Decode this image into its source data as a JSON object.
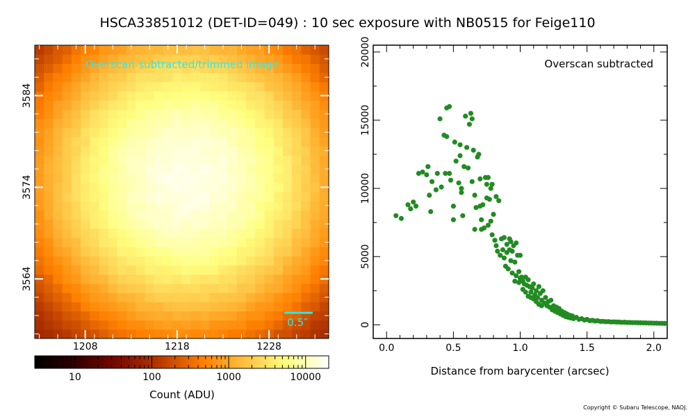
{
  "title": "HSCA33851012 (DET-ID=049) :  10 sec exposure with NB0515 for Feige110",
  "copyright": "Copyright © Subaru Telescope, NAOJ.",
  "colors": {
    "annotation": "#33e6e6",
    "scatter": "#228b22",
    "colormap": [
      "#000000",
      "#330000",
      "#7a0a00",
      "#b83a00",
      "#ff8000",
      "#ffc040",
      "#ffff80",
      "#ffffff"
    ]
  },
  "chart_data": [
    {
      "type": "heatmap",
      "annotation": "Overscan-subtracted/trimmed image",
      "scalebar_label": "0.5″",
      "xticks": [
        1208,
        1218,
        1228
      ],
      "yticks": [
        3584,
        3574,
        3564
      ],
      "xlim": [
        1202.5,
        1234.5
      ],
      "ylim": [
        3557.5,
        3589.5
      ],
      "center": [
        1219,
        3575
      ],
      "peak_adu": 16000,
      "background_adu": 60,
      "colorbar": {
        "label": "Count (ADU)",
        "scale": "log",
        "range": [
          3,
          20000
        ],
        "ticks": [
          "10",
          "100",
          "1000",
          "10000"
        ]
      }
    },
    {
      "type": "scatter",
      "annotation": "Overscan subtracted",
      "xlabel": "Distance from barycenter (arcsec)",
      "ylabel": "",
      "xlim": [
        -0.1,
        2.1
      ],
      "ylim": [
        -1000,
        20500
      ],
      "xticks": [
        "0.0",
        "0.5",
        "1.0",
        "1.5",
        "2.0"
      ],
      "yticks": [
        "0",
        "5000",
        "10000",
        "15000",
        "20000"
      ],
      "points": [
        [
          0.07,
          8000
        ],
        [
          0.11,
          7800
        ],
        [
          0.16,
          8800
        ],
        [
          0.18,
          8500
        ],
        [
          0.2,
          9000
        ],
        [
          0.22,
          8700
        ],
        [
          0.24,
          11100
        ],
        [
          0.27,
          11200
        ],
        [
          0.3,
          11000
        ],
        [
          0.31,
          11600
        ],
        [
          0.32,
          9500
        ],
        [
          0.33,
          8300
        ],
        [
          0.34,
          10500
        ],
        [
          0.37,
          9900
        ],
        [
          0.38,
          11100
        ],
        [
          0.4,
          15100
        ],
        [
          0.41,
          10100
        ],
        [
          0.43,
          13900
        ],
        [
          0.44,
          11100
        ],
        [
          0.45,
          13800
        ],
        [
          0.45,
          15900
        ],
        [
          0.47,
          16000
        ],
        [
          0.47,
          11100
        ],
        [
          0.48,
          10600
        ],
        [
          0.5,
          8700
        ],
        [
          0.5,
          7700
        ],
        [
          0.51,
          13400
        ],
        [
          0.52,
          12000
        ],
        [
          0.54,
          10400
        ],
        [
          0.55,
          12400
        ],
        [
          0.55,
          13200
        ],
        [
          0.56,
          9700
        ],
        [
          0.56,
          10000
        ],
        [
          0.57,
          8000
        ],
        [
          0.58,
          11600
        ],
        [
          0.59,
          15300
        ],
        [
          0.6,
          13000
        ],
        [
          0.61,
          11500
        ],
        [
          0.62,
          14700
        ],
        [
          0.63,
          15500
        ],
        [
          0.64,
          15100
        ],
        [
          0.64,
          10500
        ],
        [
          0.65,
          12800
        ],
        [
          0.66,
          9500
        ],
        [
          0.66,
          7000
        ],
        [
          0.67,
          8600
        ],
        [
          0.68,
          12300
        ],
        [
          0.69,
          12500
        ],
        [
          0.7,
          10700
        ],
        [
          0.7,
          8700
        ],
        [
          0.71,
          7700
        ],
        [
          0.71,
          7000
        ],
        [
          0.72,
          8800
        ],
        [
          0.73,
          7100
        ],
        [
          0.74,
          10800
        ],
        [
          0.75,
          10300
        ],
        [
          0.75,
          9300
        ],
        [
          0.76,
          10800
        ],
        [
          0.76,
          7300
        ],
        [
          0.77,
          9200
        ],
        [
          0.78,
          10000
        ],
        [
          0.78,
          7600
        ],
        [
          0.79,
          10300
        ],
        [
          0.79,
          6600
        ],
        [
          0.8,
          8100
        ],
        [
          0.81,
          6200
        ],
        [
          0.82,
          5800
        ],
        [
          0.82,
          9400
        ],
        [
          0.83,
          5400
        ],
        [
          0.84,
          9100
        ],
        [
          0.85,
          5100
        ],
        [
          0.86,
          6300
        ],
        [
          0.87,
          5500
        ],
        [
          0.88,
          6400
        ],
        [
          0.88,
          4900
        ],
        [
          0.89,
          4300
        ],
        [
          0.9,
          5900
        ],
        [
          0.9,
          5300
        ],
        [
          0.91,
          4100
        ],
        [
          0.92,
          6300
        ],
        [
          0.92,
          5500
        ],
        [
          0.93,
          6100
        ],
        [
          0.93,
          4700
        ],
        [
          0.94,
          5400
        ],
        [
          0.94,
          3800
        ],
        [
          0.95,
          5800
        ],
        [
          0.96,
          4600
        ],
        [
          0.96,
          3200
        ],
        [
          0.97,
          6000
        ],
        [
          0.97,
          3600
        ],
        [
          0.98,
          5100
        ],
        [
          0.99,
          3900
        ],
        [
          0.99,
          3100
        ],
        [
          1.0,
          5100
        ],
        [
          1.0,
          3400
        ],
        [
          1.01,
          3500
        ],
        [
          1.02,
          3200
        ],
        [
          1.02,
          2600
        ],
        [
          1.03,
          3000
        ],
        [
          1.04,
          3500
        ],
        [
          1.04,
          2400
        ],
        [
          1.05,
          2900
        ],
        [
          1.06,
          3300
        ],
        [
          1.06,
          2100
        ],
        [
          1.07,
          2800
        ],
        [
          1.08,
          2400
        ],
        [
          1.08,
          2000
        ],
        [
          1.09,
          2700
        ],
        [
          1.1,
          3000
        ],
        [
          1.1,
          1900
        ],
        [
          1.11,
          2200
        ],
        [
          1.12,
          2500
        ],
        [
          1.12,
          1700
        ],
        [
          1.13,
          2000
        ],
        [
          1.14,
          2800
        ],
        [
          1.14,
          1500
        ],
        [
          1.15,
          2300
        ],
        [
          1.16,
          1800
        ],
        [
          1.16,
          1400
        ],
        [
          1.17,
          2500
        ],
        [
          1.18,
          1600
        ],
        [
          1.19,
          2000
        ],
        [
          1.2,
          1400
        ],
        [
          1.21,
          1700
        ],
        [
          1.22,
          1300
        ],
        [
          1.23,
          1800
        ],
        [
          1.24,
          1100
        ],
        [
          1.25,
          1400
        ],
        [
          1.26,
          1000
        ],
        [
          1.27,
          1300
        ],
        [
          1.28,
          900
        ],
        [
          1.29,
          1200
        ],
        [
          1.3,
          800
        ],
        [
          1.31,
          1000
        ],
        [
          1.32,
          700
        ],
        [
          1.33,
          900
        ],
        [
          1.34,
          600
        ],
        [
          1.35,
          800
        ],
        [
          1.36,
          550
        ],
        [
          1.37,
          700
        ],
        [
          1.38,
          500
        ],
        [
          1.39,
          650
        ],
        [
          1.4,
          450
        ],
        [
          1.42,
          550
        ],
        [
          1.44,
          400
        ],
        [
          1.46,
          450
        ],
        [
          1.48,
          350
        ],
        [
          1.5,
          400
        ],
        [
          1.52,
          300
        ],
        [
          1.54,
          330
        ],
        [
          1.56,
          280
        ],
        [
          1.58,
          300
        ],
        [
          1.6,
          250
        ],
        [
          1.62,
          260
        ],
        [
          1.64,
          230
        ],
        [
          1.66,
          240
        ],
        [
          1.68,
          210
        ],
        [
          1.7,
          220
        ],
        [
          1.72,
          200
        ],
        [
          1.74,
          200
        ],
        [
          1.76,
          180
        ],
        [
          1.78,
          190
        ],
        [
          1.8,
          170
        ],
        [
          1.82,
          170
        ],
        [
          1.84,
          160
        ],
        [
          1.86,
          160
        ],
        [
          1.88,
          150
        ],
        [
          1.9,
          150
        ],
        [
          1.92,
          140
        ],
        [
          1.94,
          140
        ],
        [
          1.96,
          130
        ],
        [
          1.98,
          130
        ],
        [
          2.0,
          120
        ],
        [
          2.02,
          120
        ],
        [
          2.04,
          110
        ],
        [
          2.06,
          110
        ],
        [
          2.08,
          100
        ],
        [
          2.1,
          100
        ]
      ]
    }
  ]
}
